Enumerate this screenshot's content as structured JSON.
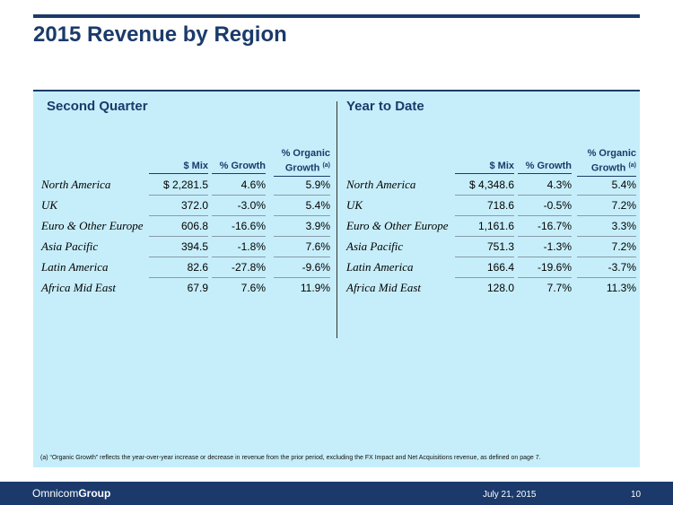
{
  "title": "2015 Revenue by Region",
  "second_quarter": {
    "heading": "Second Quarter",
    "columns": [
      "$ Mix",
      "% Growth",
      "% Organic Growth"
    ],
    "col_sup": "(a)",
    "rows": [
      {
        "region": "North America",
        "mix": "$ 2,281.5",
        "growth": "4.6%",
        "organic": "5.9%"
      },
      {
        "region": "UK",
        "mix": "372.0",
        "growth": "-3.0%",
        "organic": "5.4%"
      },
      {
        "region": "Euro & Other Europe",
        "mix": "606.8",
        "growth": "-16.6%",
        "organic": "3.9%"
      },
      {
        "region": "Asia Pacific",
        "mix": "394.5",
        "growth": "-1.8%",
        "organic": "7.6%"
      },
      {
        "region": "Latin America",
        "mix": "82.6",
        "growth": "-27.8%",
        "organic": "-9.6%"
      },
      {
        "region": "Africa Mid East",
        "mix": "67.9",
        "growth": "7.6%",
        "organic": "11.9%"
      }
    ]
  },
  "year_to_date": {
    "heading": "Year to Date",
    "columns": [
      "$ Mix",
      "% Growth",
      "% Organic Growth"
    ],
    "col_sup": "(a)",
    "rows": [
      {
        "region": "North America",
        "mix": "$ 4,348.6",
        "growth": "4.3%",
        "organic": "5.4%"
      },
      {
        "region": "UK",
        "mix": "718.6",
        "growth": "-0.5%",
        "organic": "7.2%"
      },
      {
        "region": "Euro & Other Europe",
        "mix": "1,161.6",
        "growth": "-16.7%",
        "organic": "3.3%"
      },
      {
        "region": "Asia Pacific",
        "mix": "751.3",
        "growth": "-1.3%",
        "organic": "7.2%"
      },
      {
        "region": "Latin America",
        "mix": "166.4",
        "growth": "-19.6%",
        "organic": "-3.7%"
      },
      {
        "region": "Africa Mid East",
        "mix": "128.0",
        "growth": "7.7%",
        "organic": "11.3%"
      }
    ]
  },
  "footnote": "(a)    “Organic Growth” reflects the year-over-year increase or decrease in revenue from the prior period, excluding the FX Impact and Net Acquisitions revenue, as defined on page 7.",
  "footer": {
    "logo_prefix": "Omnicom",
    "logo_suffix": "Group",
    "date": "July 21, 2015",
    "page": "10"
  },
  "colors": {
    "navy": "#1b3a6b",
    "panel": "#c6eefa"
  }
}
